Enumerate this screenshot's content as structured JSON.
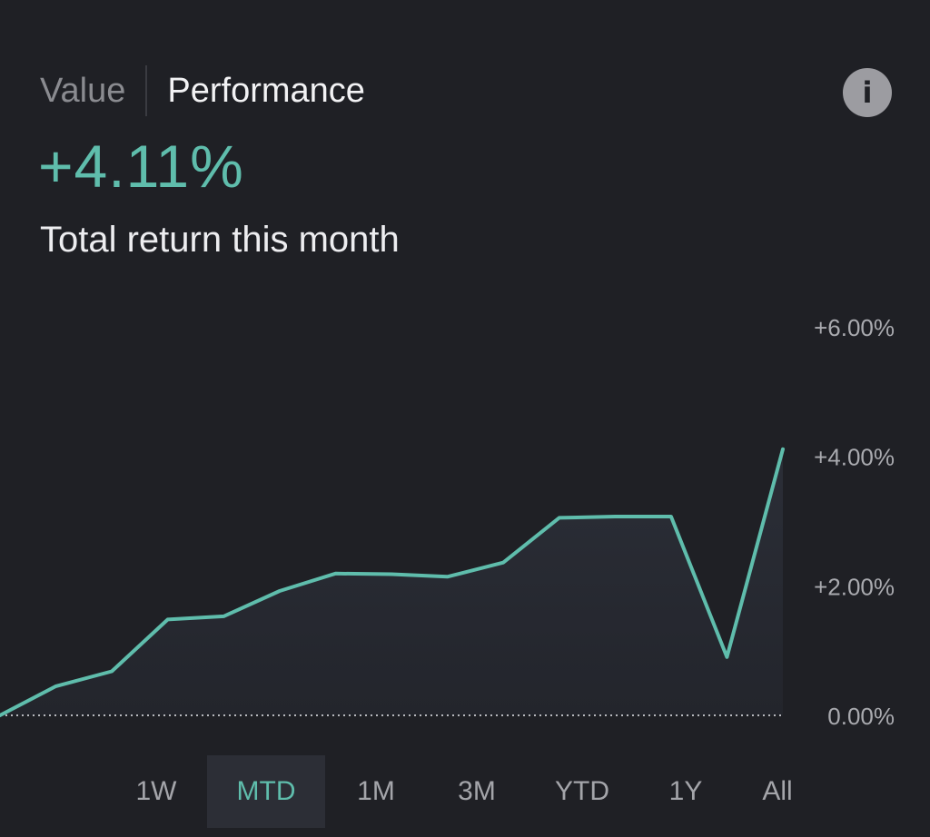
{
  "tabs": [
    {
      "label": "Value",
      "active": false
    },
    {
      "label": "Performance",
      "active": true
    }
  ],
  "info_icon": {
    "name": "info-icon",
    "glyph": "i"
  },
  "headline": {
    "return_value": "+4.11%",
    "caption": "Total return this month"
  },
  "colors": {
    "accent": "#5fbdac",
    "background": "#1f2025",
    "selected_bg": "#2c2e36"
  },
  "chart_data": {
    "type": "line",
    "title": "",
    "xlabel": "",
    "ylabel": "",
    "ylim": [
      0,
      6
    ],
    "y_ticks": [
      {
        "value": 6,
        "label": "+6.00%"
      },
      {
        "value": 4,
        "label": "+4.00%"
      },
      {
        "value": 2,
        "label": "+2.00%"
      },
      {
        "value": 0,
        "label": "0.00%"
      }
    ],
    "baseline": {
      "value": 0,
      "style": "dotted"
    },
    "series": [
      {
        "x": [
          1,
          2,
          3,
          4,
          5,
          6,
          7,
          8,
          9,
          10,
          11,
          12,
          13,
          14,
          15
        ],
        "values": [
          0.0,
          0.45,
          0.68,
          1.48,
          1.53,
          1.92,
          2.19,
          2.18,
          2.14,
          2.36,
          3.05,
          3.07,
          3.07,
          0.9,
          4.11
        ]
      }
    ],
    "area_fill": true,
    "grid": false
  },
  "periods": [
    {
      "label": "1W",
      "selected": false
    },
    {
      "label": "MTD",
      "selected": true
    },
    {
      "label": "1M",
      "selected": false
    },
    {
      "label": "3M",
      "selected": false
    },
    {
      "label": "YTD",
      "selected": false
    },
    {
      "label": "1Y",
      "selected": false
    },
    {
      "label": "All",
      "selected": false
    }
  ]
}
